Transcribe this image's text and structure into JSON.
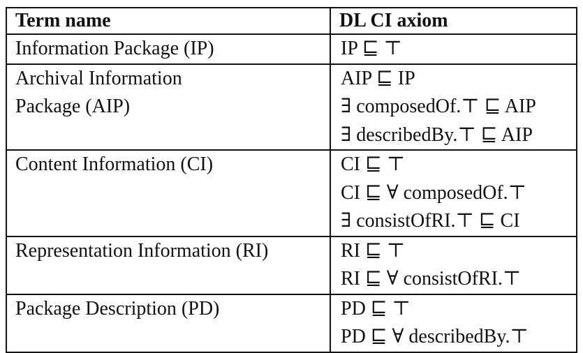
{
  "table": {
    "headers": [
      "Term name",
      "DL CI axiom"
    ],
    "rows": [
      {
        "term_lines": [
          "Information Package (IP)"
        ],
        "axioms": [
          "IP ⊑ ⊤"
        ]
      },
      {
        "term_lines": [
          "Archival Information",
          "Package (AIP)"
        ],
        "axioms": [
          "AIP ⊑ IP",
          "∃ composedOf.⊤ ⊑ AIP",
          "∃ describedBy.⊤ ⊑ AIP"
        ]
      },
      {
        "term_lines": [
          "Content Information (CI)"
        ],
        "axioms": [
          "CI ⊑ ⊤",
          "CI ⊑ ∀ composedOf.⊤",
          "∃ consistOfRI.⊤ ⊑ CI"
        ]
      },
      {
        "term_lines": [
          "Representation Information (RI)"
        ],
        "axioms": [
          "RI ⊑ ⊤",
          "RI ⊑ ∀ consistOfRI.⊤"
        ]
      },
      {
        "term_lines": [
          "Package Description (PD)"
        ],
        "axioms": [
          "PD ⊑ ⊤",
          "PD ⊑ ∀ describedBy.⊤"
        ]
      }
    ]
  }
}
